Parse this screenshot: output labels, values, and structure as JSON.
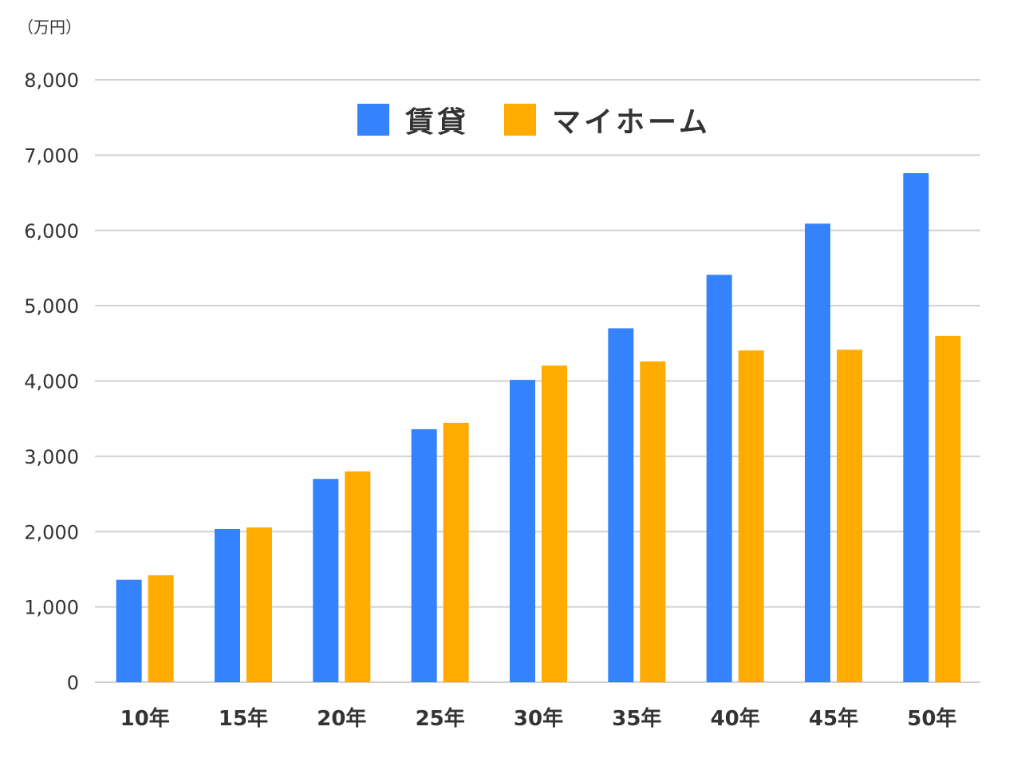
{
  "chart_data": {
    "type": "bar",
    "title": "",
    "unit_label": "（万円）",
    "xlabel": "",
    "ylabel": "万円",
    "ylim": [
      0,
      8000
    ],
    "yticks": [
      0,
      1000,
      2000,
      3000,
      4000,
      5000,
      6000,
      7000,
      8000
    ],
    "ytick_labels": [
      "0",
      "1,000",
      "2,000",
      "3,000",
      "4,000",
      "5,000",
      "6,000",
      "7,000",
      "8,000"
    ],
    "grid": true,
    "legend_position": "top",
    "categories": [
      "10年",
      "15年",
      "20年",
      "25年",
      "30年",
      "35年",
      "40年",
      "45年",
      "50年"
    ],
    "series": [
      {
        "name": "賃貸",
        "color": "#3483FC",
        "values": [
          1360,
          2035,
          2700,
          3360,
          4015,
          4700,
          5410,
          6090,
          6760
        ]
      },
      {
        "name": "マイホーム",
        "color": "#FFAB00",
        "values": [
          1420,
          2055,
          2800,
          3445,
          4205,
          4260,
          4405,
          4415,
          4600
        ]
      }
    ]
  },
  "colors": {
    "grid": "#D0D0D0",
    "text": "#333333",
    "background": "#FFFFFF"
  }
}
